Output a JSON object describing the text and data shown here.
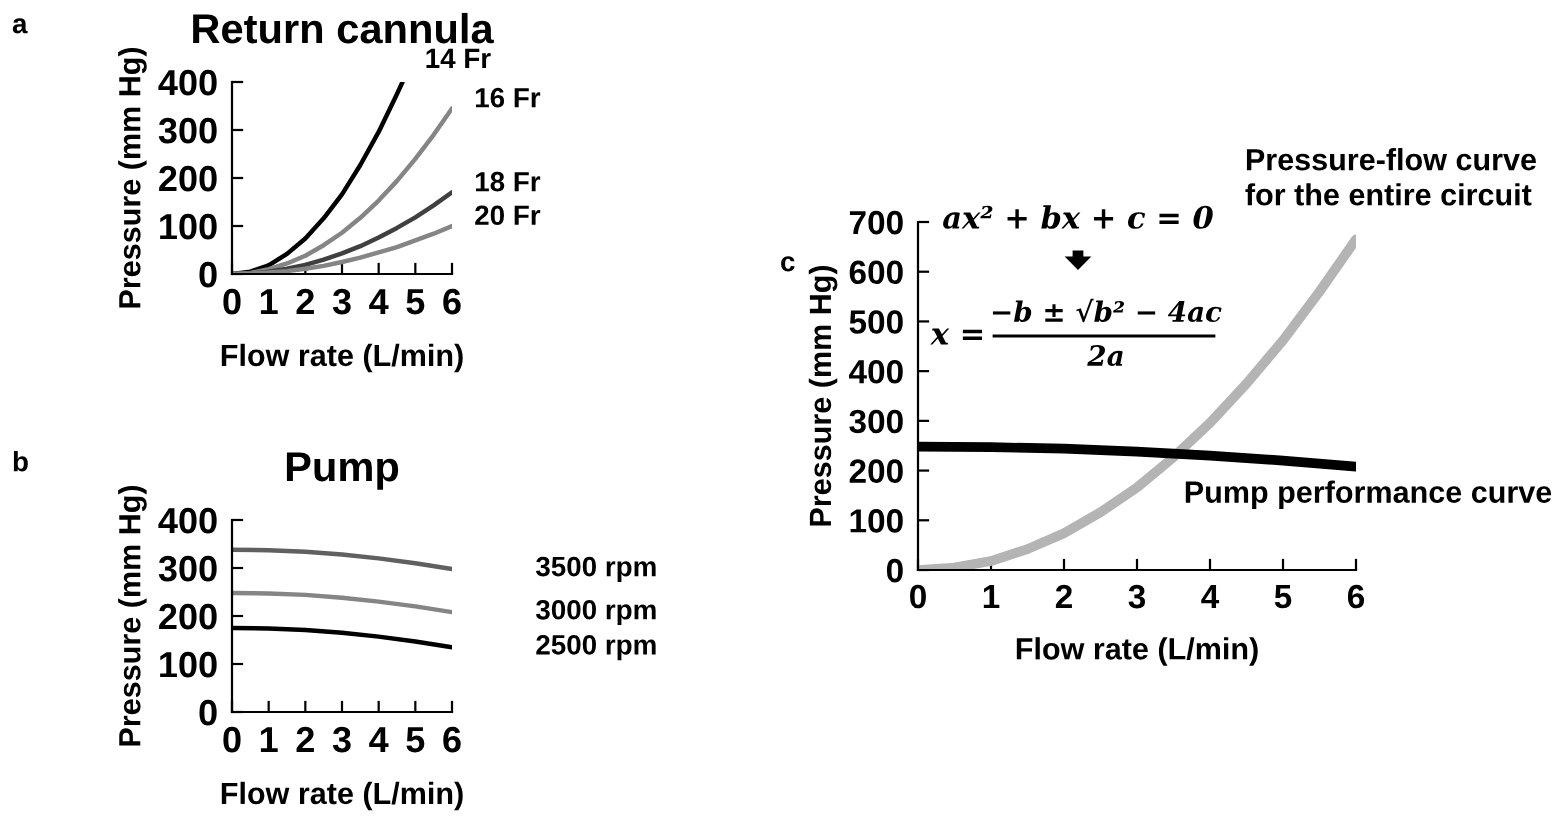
{
  "chart_data": [
    {
      "type": "line",
      "title": "Return cannula",
      "xlabel": "Flow rate (L/min)",
      "ylabel": "Pressure (mm Hg)",
      "annotations": [
        "a"
      ],
      "xlim": [
        0,
        6
      ],
      "xticks": [
        0,
        1,
        2,
        3,
        4,
        5,
        6
      ],
      "ylim": [
        0,
        400
      ],
      "yticks": [
        0,
        100,
        200,
        300,
        400
      ],
      "grid": false,
      "legend": false,
      "series": [
        {
          "name": "14 Fr",
          "color": "#000000",
          "x": [
            0,
            0.5,
            1,
            1.5,
            2,
            2.5,
            3,
            3.5,
            4,
            4.5,
            4.65
          ],
          "values": [
            0,
            5,
            18,
            42,
            74,
            116,
            166,
            227,
            296,
            375,
            400
          ]
        },
        {
          "name": "16 Fr",
          "color": "#858585",
          "x": [
            0,
            0.5,
            1,
            1.5,
            2,
            2.5,
            3,
            3.5,
            4,
            4.5,
            5,
            5.5,
            6
          ],
          "values": [
            0,
            2,
            10,
            22,
            38,
            60,
            86,
            117,
            153,
            194,
            240,
            290,
            345
          ]
        },
        {
          "name": "18 Fr",
          "color": "#404040",
          "x": [
            0,
            0.5,
            1,
            1.5,
            2,
            2.5,
            3,
            3.5,
            4,
            4.5,
            5,
            5.5,
            6
          ],
          "values": [
            0,
            1,
            5,
            11,
            19,
            30,
            43,
            58,
            76,
            96,
            118,
            143,
            170
          ]
        },
        {
          "name": "20 Fr",
          "color": "#858585",
          "x": [
            0,
            0.5,
            1,
            1.5,
            2,
            2.5,
            3,
            3.5,
            4,
            4.5,
            5,
            5.5,
            6
          ],
          "values": [
            0,
            1,
            3,
            6,
            11,
            17,
            25,
            34,
            45,
            56,
            70,
            84,
            100
          ]
        }
      ]
    },
    {
      "type": "line",
      "title": "Pump",
      "xlabel": "Flow rate (L/min)",
      "ylabel": "Pressure (mm Hg)",
      "annotations": [
        "b"
      ],
      "xlim": [
        0,
        6
      ],
      "xticks": [
        0,
        1,
        2,
        3,
        4,
        5,
        6
      ],
      "ylim": [
        0,
        400
      ],
      "yticks": [
        0,
        100,
        200,
        300,
        400
      ],
      "grid": false,
      "legend": false,
      "series": [
        {
          "name": "3500 rpm",
          "color": "#606060",
          "x": [
            0,
            1,
            2,
            3,
            4,
            5,
            6
          ],
          "values": [
            338,
            337,
            334,
            328,
            320,
            310,
            298
          ]
        },
        {
          "name": "3000 rpm",
          "color": "#858585",
          "x": [
            0,
            1,
            2,
            3,
            4,
            5,
            6
          ],
          "values": [
            248,
            247,
            244,
            238,
            230,
            220,
            208
          ]
        },
        {
          "name": "2500 rpm",
          "color": "#000000",
          "x": [
            0,
            1,
            2,
            3,
            4,
            5,
            6
          ],
          "values": [
            175,
            174,
            171,
            165,
            157,
            147,
            135
          ]
        }
      ]
    },
    {
      "type": "line",
      "xlabel": "Flow rate (L/min)",
      "ylabel": "Pressure (mm Hg)",
      "annotations": [
        "c",
        "ax² + bx + c = 0",
        "x =",
        "−b ± √b² − 4ac",
        "2a"
      ],
      "xlim": [
        0,
        6
      ],
      "xticks": [
        0,
        1,
        2,
        3,
        4,
        5,
        6
      ],
      "ylim": [
        0,
        700
      ],
      "yticks": [
        0,
        100,
        200,
        300,
        400,
        500,
        600,
        700
      ],
      "grid": false,
      "legend": false,
      "series": [
        {
          "name": "Pressure-flow curve\nfor the entire circuit",
          "color": "#b4b4b4",
          "x": [
            0,
            0.5,
            1,
            1.5,
            2,
            2.5,
            3,
            3.5,
            4,
            4.5,
            5,
            5.5,
            6
          ],
          "values": [
            0,
            5,
            18,
            42,
            74,
            116,
            166,
            227,
            296,
            375,
            462,
            560,
            665
          ]
        },
        {
          "name": "Pump performance curve",
          "color": "#000000",
          "x": [
            0,
            1,
            2,
            3,
            4,
            5,
            6
          ],
          "values": [
            248,
            247,
            244,
            238,
            230,
            220,
            208
          ]
        }
      ]
    }
  ]
}
